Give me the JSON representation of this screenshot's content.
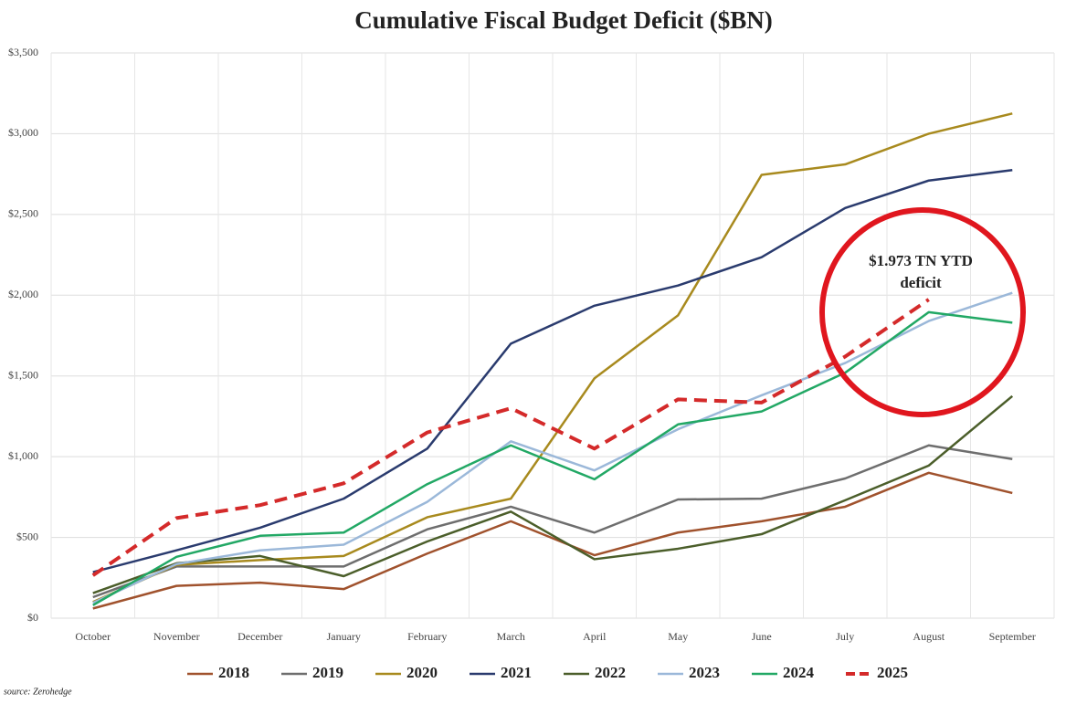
{
  "chart_data": {
    "type": "line",
    "title": "Cumulative Fiscal Budget Deficit ($BN)",
    "categories": [
      "October",
      "November",
      "December",
      "January",
      "February",
      "March",
      "April",
      "May",
      "June",
      "July",
      "August",
      "September"
    ],
    "series": [
      {
        "name": "2018",
        "color": "#a0522d",
        "values": [
          60,
          200,
          220,
          180,
          400,
          600,
          390,
          530,
          600,
          690,
          900,
          775
        ]
      },
      {
        "name": "2019",
        "color": "#6e6e6e",
        "values": [
          130,
          320,
          320,
          320,
          550,
          690,
          530,
          735,
          740,
          865,
          1070,
          985
        ]
      },
      {
        "name": "2020",
        "color": "#a88a1e",
        "values": [
          100,
          330,
          360,
          385,
          625,
          740,
          1485,
          1875,
          2745,
          2810,
          3000,
          3125
        ]
      },
      {
        "name": "2021",
        "color": "#2a3b6e",
        "values": [
          285,
          420,
          560,
          740,
          1050,
          1700,
          1935,
          2060,
          2235,
          2540,
          2710,
          2775
        ]
      },
      {
        "name": "2022",
        "color": "#4b5e2a",
        "values": [
          155,
          340,
          385,
          260,
          475,
          660,
          365,
          430,
          520,
          730,
          945,
          1375
        ]
      },
      {
        "name": "2023",
        "color": "#9bb8d9",
        "values": [
          95,
          335,
          420,
          455,
          720,
          1095,
          915,
          1170,
          1380,
          1580,
          1840,
          2015
        ]
      },
      {
        "name": "2024",
        "color": "#22a865",
        "values": [
          80,
          380,
          510,
          530,
          830,
          1070,
          860,
          1200,
          1280,
          1520,
          1895,
          1830
        ]
      },
      {
        "name": "2025",
        "color": "#d42a2a",
        "dashed": true,
        "values": [
          265,
          620,
          700,
          835,
          1150,
          1300,
          1050,
          1355,
          1335,
          1620,
          1973,
          null
        ]
      }
    ],
    "ylim": [
      0,
      3500
    ],
    "yticks": [
      {
        "value": 0,
        "label": "$0"
      },
      {
        "value": 500,
        "label": "$500"
      },
      {
        "value": 1000,
        "label": "$1,000"
      },
      {
        "value": 1500,
        "label": "$1,500"
      },
      {
        "value": 2000,
        "label": "$2,000"
      },
      {
        "value": 2500,
        "label": "$2,500"
      },
      {
        "value": 3000,
        "label": "$3,000"
      },
      {
        "value": 3500,
        "label": "$3,500"
      }
    ],
    "grid": true,
    "legend": "bottom",
    "annotation": [
      "$1.973 TN YTD",
      "deficit"
    ],
    "source": "source: Zerohedge"
  }
}
